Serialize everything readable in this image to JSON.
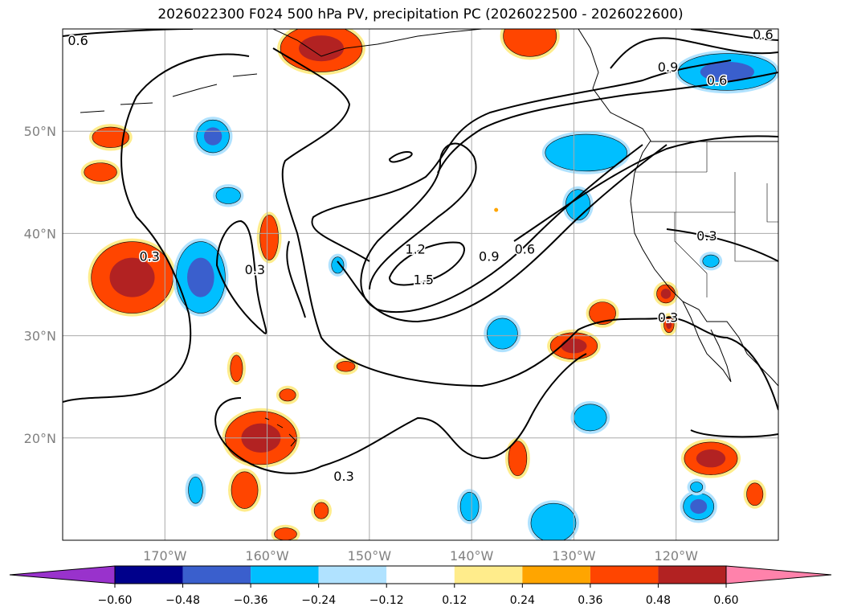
{
  "title": "2026022300 F024 500 hPa PV, precipitation PC (2026022500 - 2026022600)",
  "chart_data": {
    "type": "map",
    "projection": "PlateCarree",
    "extent": {
      "lon": [
        -180,
        -110
      ],
      "lat": [
        10,
        60
      ]
    },
    "grid": true,
    "lon_ticks": [
      {
        "value": -170,
        "label": "170°W"
      },
      {
        "value": -160,
        "label": "160°W"
      },
      {
        "value": -150,
        "label": "150°W"
      },
      {
        "value": -140,
        "label": "140°W"
      },
      {
        "value": -130,
        "label": "130°W"
      },
      {
        "value": -120,
        "label": "120°W"
      }
    ],
    "lat_ticks": [
      {
        "value": 50,
        "label": "50°N"
      },
      {
        "value": 40,
        "label": "40°N"
      },
      {
        "value": 30,
        "label": "30°N"
      },
      {
        "value": 20,
        "label": "20°N"
      }
    ],
    "pv_contour_levels": [
      0.3,
      0.6,
      0.9,
      1.2,
      1.5
    ],
    "contour_labels": [
      {
        "text": "0.6",
        "lon": -178.5,
        "lat": 58.9
      },
      {
        "text": "0.3",
        "lon": -171.5,
        "lat": 37.8
      },
      {
        "text": "0.3",
        "lon": -161.2,
        "lat": 36.5
      },
      {
        "text": "1.2",
        "lon": -145.5,
        "lat": 38.5
      },
      {
        "text": "1.5",
        "lon": -144.7,
        "lat": 35.5
      },
      {
        "text": "0.9",
        "lon": -138.3,
        "lat": 37.8
      },
      {
        "text": "0.6",
        "lon": -134.8,
        "lat": 38.5
      },
      {
        "text": "0.3",
        "lon": -152.5,
        "lat": 16.3
      },
      {
        "text": "0.9",
        "lon": -120.8,
        "lat": 56.3
      },
      {
        "text": "0.6",
        "lon": -116,
        "lat": 55.0
      },
      {
        "text": "0.6",
        "lon": -111.5,
        "lat": 59.5
      },
      {
        "text": "0.3",
        "lon": -117,
        "lat": 39.8
      },
      {
        "text": "0.3",
        "lon": -120.8,
        "lat": 31.8
      }
    ],
    "colorbar": {
      "levels": [
        "-0.60",
        "-0.48",
        "-0.36",
        "-0.24",
        "-0.12",
        "0.12",
        "0.24",
        "0.36",
        "0.48",
        "0.60"
      ],
      "colors": [
        "#9932cc",
        "#00008b",
        "#3a5fcd",
        "#00bfff",
        "#b0e2ff",
        "#ffffff",
        "#ffec8b",
        "#ffa500",
        "#ff4500",
        "#b22222",
        "#ff82ab"
      ],
      "extend": "both"
    },
    "precip_areas": [
      {
        "lon": -173.2,
        "lat": 35.7,
        "rx": 4.0,
        "ry": 3.5,
        "value": 0.36,
        "core": 0.48
      },
      {
        "lon": -166.5,
        "lat": 35.7,
        "rx": 2.4,
        "ry": 3.5,
        "value": -0.36,
        "core": -0.48
      },
      {
        "lon": -154.7,
        "lat": 58.1,
        "rx": 4.0,
        "ry": 2.3,
        "value": 0.36,
        "core": 0.48
      },
      {
        "lon": -134.3,
        "lat": 59.3,
        "rx": 2.6,
        "ry": 2.0,
        "value": 0.36
      },
      {
        "lon": -115.0,
        "lat": 55.8,
        "rx": 4.8,
        "ry": 1.8,
        "value": -0.36,
        "core": -0.48
      },
      {
        "lon": -128.8,
        "lat": 47.9,
        "rx": 4.0,
        "ry": 1.8,
        "value": -0.36
      },
      {
        "lon": -165.3,
        "lat": 49.5,
        "rx": 1.6,
        "ry": 1.6,
        "value": -0.36,
        "core": -0.48
      },
      {
        "lon": -175.3,
        "lat": 49.4,
        "rx": 1.8,
        "ry": 1.0,
        "value": 0.36
      },
      {
        "lon": -176.3,
        "lat": 46.0,
        "rx": 1.6,
        "ry": 0.9,
        "value": 0.36
      },
      {
        "lon": -159.8,
        "lat": 39.6,
        "rx": 0.9,
        "ry": 2.2,
        "value": 0.36
      },
      {
        "lon": -160.6,
        "lat": 20.0,
        "rx": 3.5,
        "ry": 2.6,
        "value": 0.36,
        "core": 0.48
      },
      {
        "lon": -162.2,
        "lat": 14.9,
        "rx": 1.3,
        "ry": 1.8,
        "value": 0.36
      },
      {
        "lon": -130.0,
        "lat": 29.0,
        "rx": 2.3,
        "ry": 1.3,
        "value": 0.36,
        "core": 0.48
      },
      {
        "lon": -127.2,
        "lat": 32.2,
        "rx": 1.3,
        "ry": 1.1,
        "value": 0.36
      },
      {
        "lon": -116.6,
        "lat": 18.0,
        "rx": 2.6,
        "ry": 1.6,
        "value": 0.36,
        "core": 0.48
      },
      {
        "lon": -112.3,
        "lat": 14.5,
        "rx": 0.8,
        "ry": 1.1,
        "value": 0.36
      },
      {
        "lon": -135.5,
        "lat": 18.0,
        "rx": 0.9,
        "ry": 1.7,
        "value": 0.36
      },
      {
        "lon": -137.0,
        "lat": 30.2,
        "rx": 1.5,
        "ry": 1.5,
        "value": -0.36
      },
      {
        "lon": -128.4,
        "lat": 22.0,
        "rx": 1.6,
        "ry": 1.3,
        "value": -0.36
      },
      {
        "lon": -132.0,
        "lat": 11.7,
        "rx": 2.2,
        "ry": 1.9,
        "value": -0.36
      },
      {
        "lon": -140.2,
        "lat": 13.3,
        "rx": 0.9,
        "ry": 1.4,
        "value": -0.36
      },
      {
        "lon": -117.8,
        "lat": 13.3,
        "rx": 1.5,
        "ry": 1.3,
        "value": -0.36,
        "core": -0.48
      },
      {
        "lon": -129.6,
        "lat": 42.8,
        "rx": 1.2,
        "ry": 1.5,
        "value": -0.36
      },
      {
        "lon": -163.8,
        "lat": 43.7,
        "rx": 1.2,
        "ry": 0.8,
        "value": -0.36
      },
      {
        "lon": -167.0,
        "lat": 14.9,
        "rx": 0.7,
        "ry": 1.3,
        "value": -0.36
      },
      {
        "lon": -163.0,
        "lat": 26.8,
        "rx": 0.6,
        "ry": 1.3,
        "value": 0.36
      },
      {
        "lon": -158.0,
        "lat": 24.2,
        "rx": 0.8,
        "ry": 0.6,
        "value": 0.36
      },
      {
        "lon": -152.3,
        "lat": 27.0,
        "rx": 0.9,
        "ry": 0.5,
        "value": 0.36
      },
      {
        "lon": -154.7,
        "lat": 12.9,
        "rx": 0.7,
        "ry": 0.8,
        "value": 0.36
      },
      {
        "lon": -158.2,
        "lat": 10.6,
        "rx": 1.1,
        "ry": 0.6,
        "value": 0.36
      },
      {
        "lon": -121.0,
        "lat": 34.1,
        "rx": 0.9,
        "ry": 0.9,
        "value": 0.36,
        "core": 0.48
      },
      {
        "lon": -120.7,
        "lat": 31.1,
        "rx": 0.5,
        "ry": 0.8,
        "value": 0.36,
        "core": 0.48
      },
      {
        "lon": -153.1,
        "lat": 36.9,
        "rx": 0.6,
        "ry": 0.8,
        "value": -0.36
      },
      {
        "lon": -116.6,
        "lat": 37.3,
        "rx": 0.8,
        "ry": 0.6,
        "value": -0.36
      },
      {
        "lon": -118.0,
        "lat": 15.2,
        "rx": 0.6,
        "ry": 0.5,
        "value": -0.36
      },
      {
        "lon": -137.6,
        "lat": 42.3,
        "rx": 0.0,
        "ry": 0.0,
        "value": 0.12
      }
    ]
  }
}
